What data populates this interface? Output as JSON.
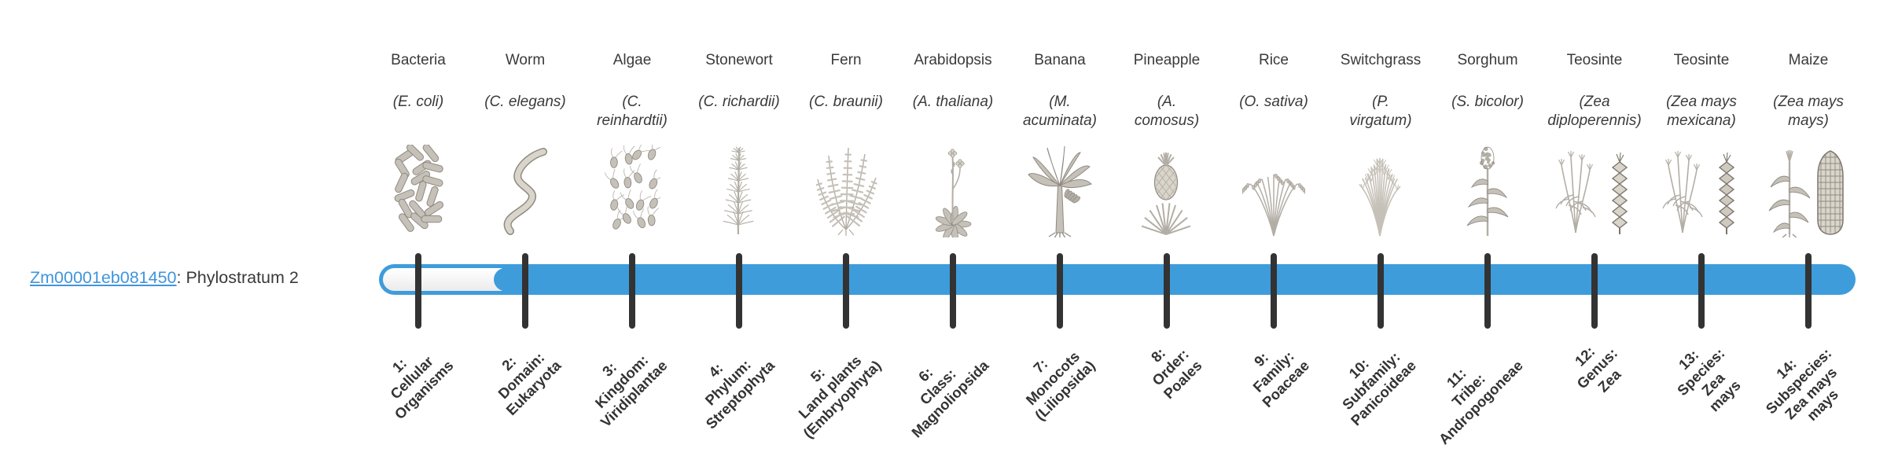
{
  "gene": {
    "id": "Zm00001eb081450",
    "suffix": ": Phylostratum 2",
    "phylostratum": 2
  },
  "timeline": {
    "total_strata": 14,
    "fill_starts_at_stratum": 2
  },
  "colors": {
    "bar_blue": "#3e9cdb",
    "tick_dark": "#333333",
    "link_blue": "#4195db",
    "text_dark": "#3a3a3a"
  },
  "strata": [
    {
      "index": 1,
      "organism": "Bacteria",
      "scientific": "(E. coli)",
      "stratum_label": "1:\nCellular\nOrganisms",
      "icon": "bacteria-icon"
    },
    {
      "index": 2,
      "organism": "Worm",
      "scientific": "(C. elegans)",
      "stratum_label": "2:\nDomain:\nEukaryota",
      "icon": "worm-icon"
    },
    {
      "index": 3,
      "organism": "Algae",
      "scientific": "(C.\nreinhardtii)",
      "stratum_label": "3:\nKingdom:\nViridiplantae",
      "icon": "algae-icon"
    },
    {
      "index": 4,
      "organism": "Stonewort",
      "scientific": "(C. richardii)",
      "stratum_label": "4:\nPhylum:\nStreptophyta",
      "icon": "stonewort-icon"
    },
    {
      "index": 5,
      "organism": "Fern",
      "scientific": "(C. braunii)",
      "stratum_label": "5:\nLand plants\n(Embryophyta)",
      "icon": "fern-icon"
    },
    {
      "index": 6,
      "organism": "Arabidopsis",
      "scientific": "(A. thaliana)",
      "stratum_label": "6:\nClass:\nMagnoliopsida",
      "icon": "arabidopsis-icon"
    },
    {
      "index": 7,
      "organism": "Banana",
      "scientific": "(M.\nacuminata)",
      "stratum_label": "7:\nMonocots\n(Liliopsida)",
      "icon": "banana-icon"
    },
    {
      "index": 8,
      "organism": "Pineapple",
      "scientific": "(A.\ncomosus)",
      "stratum_label": "8:\nOrder:\nPoales",
      "icon": "pineapple-icon"
    },
    {
      "index": 9,
      "organism": "Rice",
      "scientific": "(O. sativa)",
      "stratum_label": "9:\nFamily:\nPoaceae",
      "icon": "rice-icon"
    },
    {
      "index": 10,
      "organism": "Switchgrass",
      "scientific": "(P.\nvirgatum)",
      "stratum_label": "10:\nSubfamily:\nPanicoideae",
      "icon": "switchgrass-icon"
    },
    {
      "index": 11,
      "organism": "Sorghum",
      "scientific": "(S. bicolor)",
      "stratum_label": "11:\nTribe:\nAndropogoneae",
      "icon": "sorghum-icon"
    },
    {
      "index": 12,
      "organism": "Teosinte",
      "scientific": "(Zea\ndiploperennis)",
      "stratum_label": "12:\nGenus:\nZea",
      "icon": "teosinte-diploperennis-icon"
    },
    {
      "index": 13,
      "organism": "Teosinte",
      "scientific": "(Zea mays\nmexicana)",
      "stratum_label": "13:\nSpecies:\nZea\nmays",
      "icon": "teosinte-mexicana-icon"
    },
    {
      "index": 14,
      "organism": "Maize",
      "scientific": "(Zea mays\nmays)",
      "stratum_label": "14:\nSubspecies:\nZea mays\nmays",
      "icon": "maize-icon"
    }
  ]
}
